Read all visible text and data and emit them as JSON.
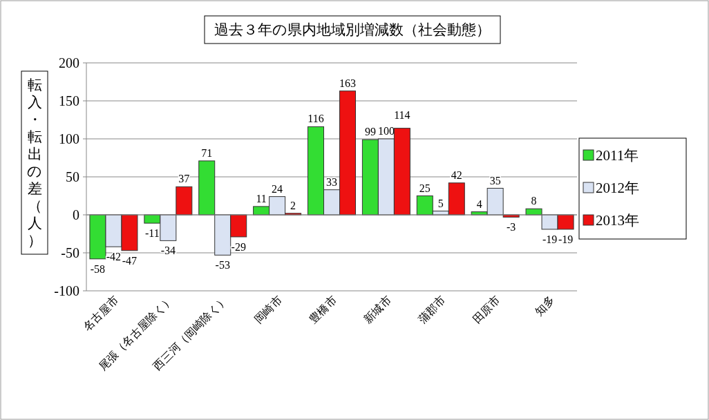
{
  "chart_data": {
    "type": "bar",
    "title": "過去３年の県内地域別増減数（社会動態）",
    "ylabel": "転入・転出の差（人）",
    "categories": [
      "名古屋市",
      "尾張（名古屋除く）",
      "西三河（岡崎除く）",
      "岡崎市",
      "豊橋市",
      "新城市",
      "蒲郡市",
      "田原市",
      "知多"
    ],
    "series": [
      {
        "name": "2011年",
        "color": "#33dd33",
        "values": [
          -58,
          -11,
          71,
          11,
          116,
          99,
          25,
          4,
          8
        ]
      },
      {
        "name": "2012年",
        "color": "#dae3f3",
        "values": [
          -42,
          -34,
          -53,
          24,
          33,
          100,
          5,
          35,
          -19
        ]
      },
      {
        "name": "2013年",
        "color": "#ee1111",
        "values": [
          -47,
          37,
          -29,
          2,
          163,
          114,
          42,
          -3,
          -19
        ]
      }
    ],
    "ylim": [
      -100,
      200
    ],
    "yticks": [
      -100,
      -50,
      0,
      50,
      100,
      150,
      200
    ],
    "grid": "y",
    "legend": "right",
    "data_labels": true
  }
}
